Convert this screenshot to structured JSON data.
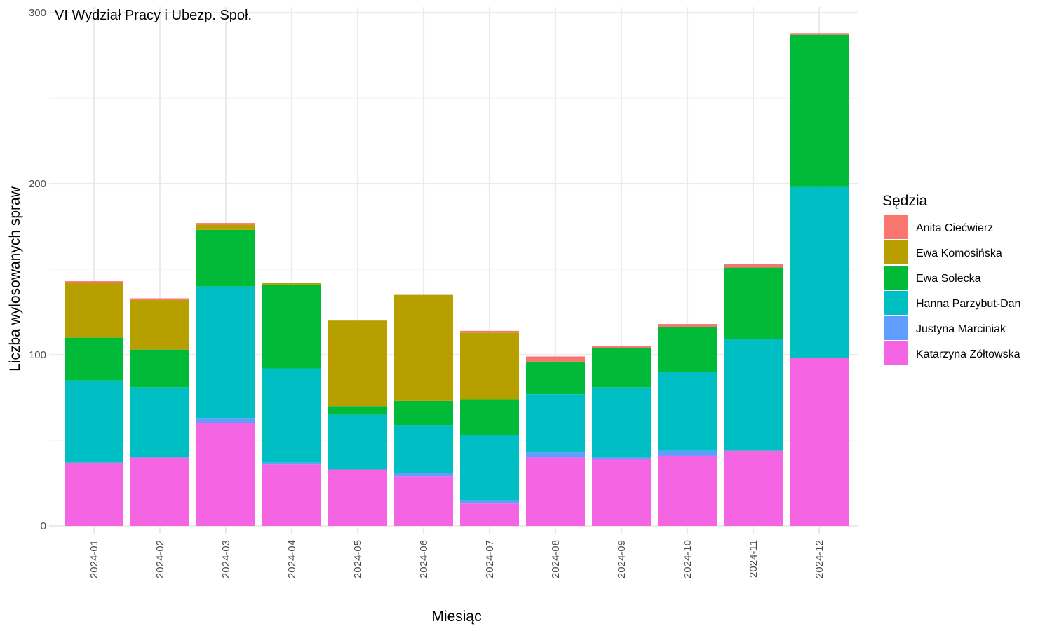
{
  "chart_data": {
    "type": "bar",
    "stacked": true,
    "title": "VI Wydział Pracy i Ubezp. Społ.",
    "xlabel": "Miesiąc",
    "ylabel": "Liczba wylosowanych spraw",
    "ylim": [
      0,
      300
    ],
    "yticks": [
      0,
      100,
      200,
      300
    ],
    "grid": true,
    "legend": {
      "title": "Sędzia",
      "position": "right"
    },
    "categories": [
      "2024-01",
      "2024-02",
      "2024-03",
      "2024-04",
      "2024-05",
      "2024-06",
      "2024-07",
      "2024-08",
      "2024-09",
      "2024-10",
      "2024-11",
      "2024-12"
    ],
    "series": [
      {
        "name": "Katarzyna Żółtowska",
        "color": "#F564E3",
        "values": [
          37,
          40,
          60,
          36,
          33,
          29,
          13,
          40,
          39,
          41,
          44,
          98
        ]
      },
      {
        "name": "Justyna Marciniak",
        "color": "#619CFF",
        "values": [
          0,
          0,
          3,
          1,
          0,
          2,
          2,
          3,
          1,
          3,
          0,
          0
        ]
      },
      {
        "name": "Hanna Parzybut-Dan",
        "color": "#00BFC4",
        "values": [
          48,
          41,
          77,
          55,
          32,
          28,
          38,
          34,
          41,
          46,
          65,
          100
        ]
      },
      {
        "name": "Ewa Solecka",
        "color": "#00BA38",
        "values": [
          25,
          22,
          33,
          49,
          5,
          14,
          21,
          19,
          23,
          26,
          42,
          89
        ]
      },
      {
        "name": "Ewa Komosińska",
        "color": "#B79F00",
        "values": [
          32,
          29,
          3,
          1,
          50,
          62,
          39,
          0,
          0,
          0,
          0,
          0
        ]
      },
      {
        "name": "Anita Ciećwierz",
        "color": "#F8766D",
        "values": [
          1,
          1,
          1,
          0,
          0,
          0,
          1,
          3,
          1,
          2,
          2,
          1
        ]
      }
    ],
    "legend_order": [
      "Anita Ciećwierz",
      "Ewa Komosińska",
      "Ewa Solecka",
      "Hanna Parzybut-Dan",
      "Justyna Marciniak",
      "Katarzyna Żółtowska"
    ]
  }
}
